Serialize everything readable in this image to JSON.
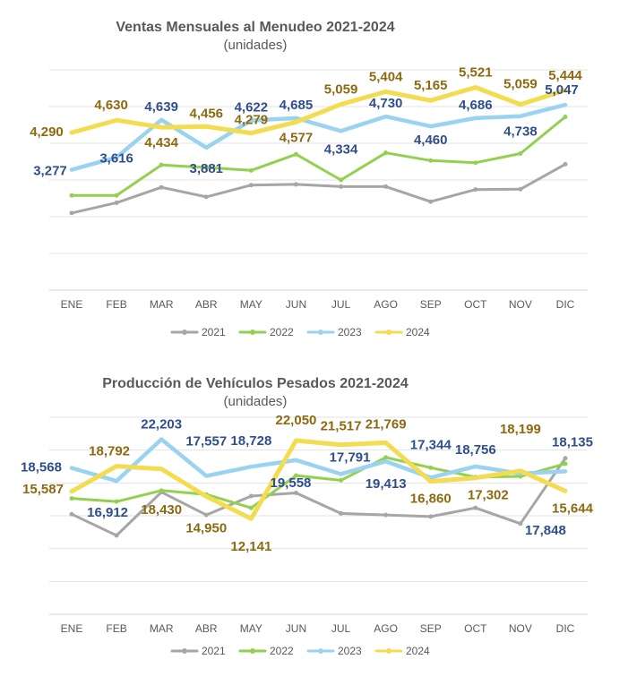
{
  "chart_data": [
    {
      "type": "line",
      "title": "Ventas Mensuales al Menudeo 2021-2024",
      "subtitle": "(unidades)",
      "categories": [
        "ENE",
        "FEB",
        "MAR",
        "ABR",
        "MAY",
        "JUN",
        "JUL",
        "AGO",
        "SEP",
        "OCT",
        "NOV",
        "DIC"
      ],
      "ylim": [
        0,
        6000
      ],
      "series": [
        {
          "name": "2021",
          "color": "#A6A6A6",
          "values": [
            2100,
            2380,
            2800,
            2540,
            2860,
            2880,
            2820,
            2820,
            2410,
            2740,
            2750,
            3430
          ]
        },
        {
          "name": "2022",
          "color": "#92D050",
          "values": [
            2580,
            2580,
            3410,
            3340,
            3260,
            3700,
            3000,
            3740,
            3530,
            3470,
            3720,
            4720
          ]
        },
        {
          "name": "2023",
          "color": "#99D3F0",
          "values": [
            3277,
            3616,
            4639,
            3881,
            4622,
            4685,
            4334,
            4730,
            4460,
            4686,
            4738,
            5047
          ]
        },
        {
          "name": "2024",
          "color": "#F3DC50",
          "values": [
            4290,
            4630,
            4434,
            4456,
            4279,
            4577,
            5059,
            5404,
            5165,
            5521,
            5059,
            5444
          ]
        }
      ],
      "data_labels": {
        "2023": [
          "3,277",
          "3,616",
          "4,639",
          "3,881",
          "4,622",
          "4,685",
          "4,334",
          "4,730",
          "4,460",
          "4,686",
          "4,738",
          "5,047"
        ],
        "2024": [
          "4,290",
          "4,630",
          "4,434",
          "4,456",
          "4,279",
          "4,577",
          "5,059",
          "5,404",
          "5,165",
          "5,521",
          "5,059",
          "5,444"
        ]
      },
      "xlabel": "",
      "ylabel": "",
      "grid": true,
      "legend": "bottom"
    },
    {
      "type": "line",
      "title": "Producción de Vehículos Pesados 2021-2024",
      "subtitle": "(unidades)",
      "categories": [
        "ENE",
        "FEB",
        "MAR",
        "ABR",
        "MAY",
        "JUN",
        "JUL",
        "AGO",
        "SEP",
        "OCT",
        "NOV",
        "DIC"
      ],
      "ylim": [
        0,
        25000
      ],
      "series": [
        {
          "name": "2021",
          "color": "#A6A6A6",
          "values": [
            12700,
            10000,
            15500,
            12600,
            15000,
            15400,
            12800,
            12600,
            12400,
            13500,
            11500,
            19800
          ]
        },
        {
          "name": "2022",
          "color": "#92D050",
          "values": [
            14700,
            14300,
            15700,
            15200,
            13500,
            17600,
            17000,
            19900,
            18600,
            17400,
            17500,
            19100
          ]
        },
        {
          "name": "2023",
          "color": "#99D3F0",
          "values": [
            18568,
            16912,
            22203,
            17557,
            18728,
            19558,
            17791,
            19413,
            17344,
            18756,
            17848,
            18135
          ]
        },
        {
          "name": "2024",
          "color": "#F3DC50",
          "values": [
            15587,
            18792,
            18430,
            14950,
            12141,
            22050,
            21517,
            21769,
            16860,
            17302,
            18199,
            15644
          ]
        }
      ],
      "data_labels": {
        "2023": [
          "18,568",
          "16,912",
          "22,203",
          "17,557",
          "18,728",
          "19,558",
          "17,791",
          "19,413",
          "17,344",
          "18,756",
          "17,848",
          "18,135"
        ],
        "2024": [
          "15,587",
          "18,792",
          "18,430",
          "14,950",
          "12,141",
          "22,050",
          "21,517",
          "21,769",
          "16,860",
          "17,302",
          "18,199",
          "15,644"
        ]
      },
      "xlabel": "",
      "ylabel": "",
      "grid": true,
      "legend": "bottom"
    }
  ]
}
